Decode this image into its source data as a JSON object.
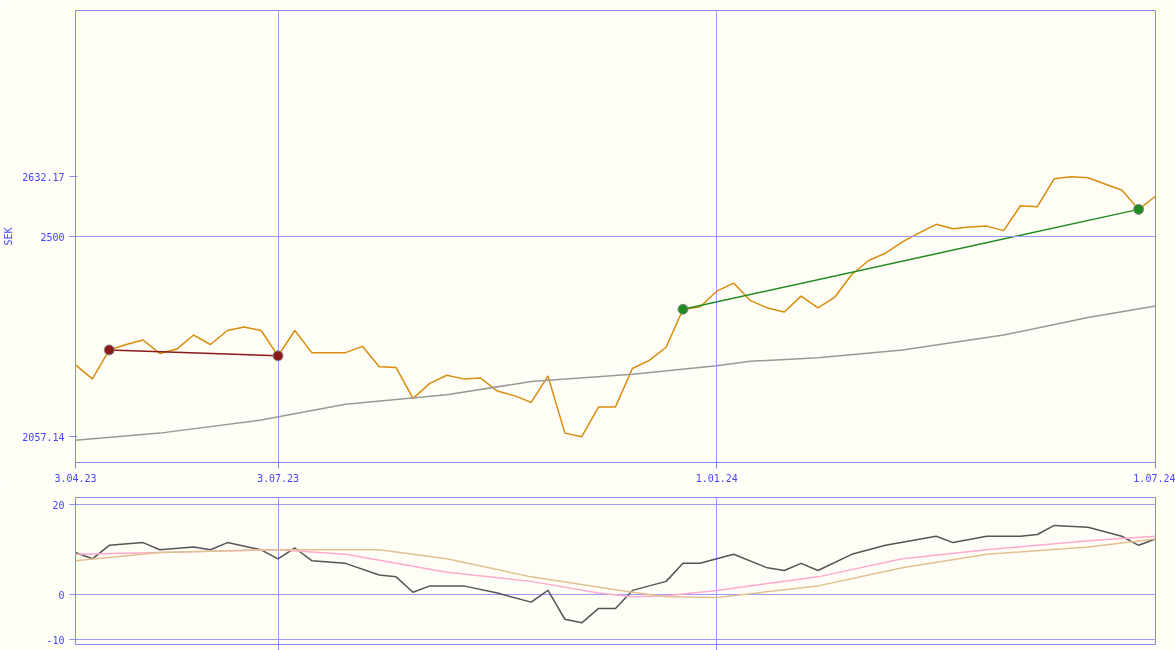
{
  "chart_data": [
    {
      "type": "line",
      "ylabel": "SEK",
      "x": [
        "2023-04-10",
        "2023-04-17",
        "2023-04-24",
        "2023-05-01",
        "2023-05-08",
        "2023-05-15",
        "2023-05-22",
        "2023-05-29",
        "2023-06-05",
        "2023-06-12",
        "2023-06-19",
        "2023-06-26",
        "2023-07-03",
        "2023-07-10",
        "2023-07-17",
        "2023-07-24",
        "2023-07-31",
        "2023-08-07",
        "2023-08-14",
        "2023-08-21",
        "2023-08-28",
        "2023-09-04",
        "2023-09-11",
        "2023-09-18",
        "2023-09-25",
        "2023-10-02",
        "2023-10-09",
        "2023-10-16",
        "2023-10-23",
        "2023-10-30",
        "2023-11-06",
        "2023-11-13",
        "2023-11-20",
        "2023-11-27",
        "2023-12-04",
        "2023-12-11",
        "2023-12-18",
        "2023-12-25",
        "2024-01-01",
        "2024-01-08",
        "2024-01-15",
        "2024-01-22",
        "2024-01-29",
        "2024-02-05",
        "2024-02-12",
        "2024-02-19",
        "2024-02-26",
        "2024-03-04",
        "2024-03-11",
        "2024-03-18",
        "2024-03-25",
        "2024-04-01",
        "2024-04-08",
        "2024-04-15",
        "2024-04-22",
        "2024-04-29",
        "2024-05-06",
        "2024-05-13",
        "2024-05-20",
        "2024-05-27",
        "2024-06-03",
        "2024-06-10",
        "2024-06-17",
        "2024-06-24",
        "2024-07-01"
      ],
      "series": [
        {
          "color": "#d98c0c",
          "values": [
            2216,
            2185,
            2249,
            2261,
            2271,
            2241,
            2251,
            2282,
            2261,
            2292,
            2300,
            2292,
            2236,
            2292,
            2243,
            2243,
            2243,
            2257,
            2212,
            2210,
            2142,
            2175,
            2193,
            2185,
            2187,
            2158,
            2148,
            2133,
            2191,
            2065,
            2057.14,
            2123,
            2123,
            2208,
            2226,
            2255,
            2339,
            2344,
            2379,
            2397,
            2358,
            2342,
            2333,
            2368,
            2342,
            2366,
            2416,
            2447,
            2463,
            2488,
            2508,
            2527,
            2517,
            2521,
            2523,
            2513,
            2568,
            2566,
            2628,
            2632.17,
            2630,
            2616,
            2603,
            2560,
            2589
          ]
        },
        {
          "color": "#999999",
          "x": [
            "2023-04-10",
            "2023-05-15",
            "2023-06-26",
            "2023-07-31",
            "2023-09-11",
            "2023-10-16",
            "2023-11-27",
            "2024-01-01",
            "2024-01-15",
            "2024-02-12",
            "2024-03-18",
            "2024-04-29",
            "2024-06-03",
            "2024-07-01"
          ],
          "values": [
            2049,
            2065,
            2094,
            2129,
            2150,
            2179,
            2195,
            2214,
            2224,
            2232,
            2249,
            2282,
            2321,
            2346
          ]
        },
        {
          "color": "#8b1a1a",
          "marker": "circle",
          "x": [
            "2023-04-24",
            "2023-07-03"
          ],
          "values": [
            2249,
            2236
          ]
        },
        {
          "color": "#228b22",
          "marker": "circle",
          "x": [
            "2023-12-18",
            "2024-06-24"
          ],
          "values": [
            2339,
            2560
          ]
        }
      ],
      "xlim": [
        "2023-04-10",
        "2024-07-01"
      ],
      "xticks": [
        {
          "value": "2023-04-10",
          "label": "3.04.23"
        },
        {
          "value": "2023-07-03",
          "label": "3.07.23"
        },
        {
          "value": "2024-01-01",
          "label": "1.01.24"
        },
        {
          "value": "2024-07-01",
          "label": "1.07.24"
        }
      ],
      "ylim": [
        2000,
        3000
      ],
      "yticks": [
        {
          "value": 2057.14,
          "label": "2057.14"
        },
        2500,
        {
          "value": 2632.17,
          "label": "2632.17"
        }
      ],
      "grid": "x",
      "ref_lines": [
        {
          "axis": "y",
          "value": 2500,
          "color": "#9999ff"
        }
      ]
    },
    {
      "type": "line",
      "tick_labels": "y",
      "grid": true,
      "xlim": [
        "2023-04-10",
        "2024-07-01"
      ],
      "xticks": [
        {
          "value": "2023-07-03",
          "label": null
        },
        {
          "value": "2024-01-01",
          "label": null
        }
      ],
      "ylim": [
        -11,
        21.6
      ],
      "yticks": [
        -10,
        0,
        20
      ],
      "series": [
        {
          "color": "#555555",
          "x": [
            "2023-04-10",
            "2023-04-17",
            "2023-04-24",
            "2023-05-08",
            "2023-05-15",
            "2023-05-29",
            "2023-06-05",
            "2023-06-12",
            "2023-06-26",
            "2023-07-03",
            "2023-07-10",
            "2023-07-17",
            "2023-07-31",
            "2023-08-14",
            "2023-08-21",
            "2023-08-28",
            "2023-09-04",
            "2023-09-18",
            "2023-10-02",
            "2023-10-16",
            "2023-10-23",
            "2023-10-30",
            "2023-11-06",
            "2023-11-13",
            "2023-11-20",
            "2023-11-27",
            "2023-12-11",
            "2023-12-18",
            "2023-12-25",
            "2024-01-08",
            "2024-01-22",
            "2024-01-29",
            "2024-02-05",
            "2024-02-12",
            "2024-02-26",
            "2024-03-11",
            "2024-04-01",
            "2024-04-08",
            "2024-04-22",
            "2024-05-06",
            "2024-05-13",
            "2024-05-20",
            "2024-06-03",
            "2024-06-17",
            "2024-06-24",
            "2024-07-01"
          ],
          "values": [
            9.4,
            8,
            11,
            11.6,
            10,
            10.6,
            10,
            11.6,
            10,
            8,
            10.4,
            7.6,
            7,
            4.4,
            4,
            0.6,
            2,
            2,
            0.4,
            -1.6,
            1,
            -5.4,
            -6.2,
            -3,
            -3,
            1,
            3,
            7,
            7,
            9,
            6,
            5.4,
            7,
            5.4,
            9,
            11,
            13,
            11.6,
            13,
            13,
            13.4,
            15.4,
            15,
            13,
            11,
            12.4
          ]
        },
        {
          "color": "#ffaacc",
          "x": [
            "2023-04-10",
            "2023-05-15",
            "2023-07-03",
            "2023-07-31",
            "2023-09-11",
            "2023-10-16",
            "2023-11-13",
            "2023-11-27",
            "2023-12-11",
            "2024-01-01",
            "2024-02-12",
            "2024-03-18",
            "2024-04-22",
            "2024-06-03",
            "2024-07-01"
          ],
          "values": [
            9,
            9.4,
            10,
            9,
            5,
            3,
            0.4,
            -0.4,
            -0.2,
            1,
            4,
            8,
            10,
            12,
            13
          ]
        },
        {
          "color": "#e0c090",
          "x": [
            "2023-04-10",
            "2023-05-15",
            "2023-06-26",
            "2023-08-14",
            "2023-09-11",
            "2023-10-16",
            "2023-11-27",
            "2023-12-11",
            "2024-01-01",
            "2024-02-12",
            "2024-03-18",
            "2024-04-22",
            "2024-06-03",
            "2024-07-01"
          ],
          "values": [
            7.6,
            9.4,
            10,
            10,
            8,
            4,
            0.6,
            -0.4,
            -0.6,
            2,
            6,
            9,
            10.6,
            12.4
          ]
        }
      ]
    }
  ]
}
